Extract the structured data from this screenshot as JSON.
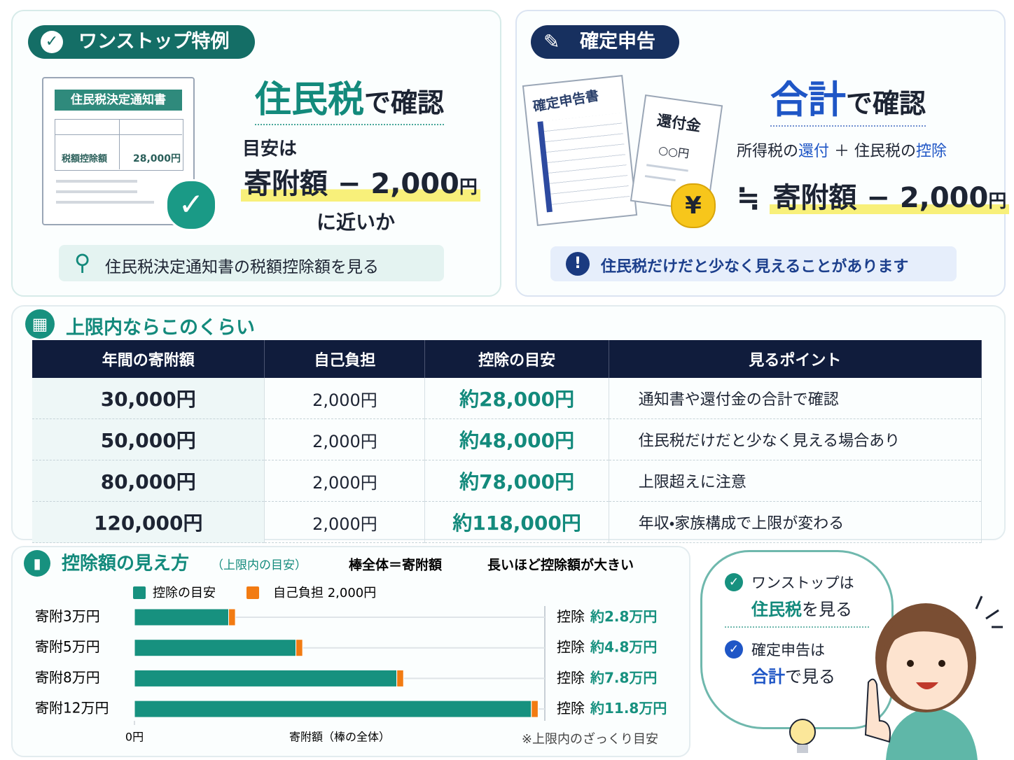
{
  "onestop": {
    "badge": "ワンストップ特例",
    "doc_title": "住民税決定通知書",
    "doc_row_label": "税額控除額",
    "doc_row_value": "28,000円",
    "heading_em": "住民税",
    "heading_rest": "で確認",
    "lead": "目安は",
    "formula": "寄附額 − 2,000",
    "formula_unit": "円",
    "tail": "に近いか",
    "hint": "住民税決定通知書の税額控除額を見る"
  },
  "kakutei": {
    "badge": "確定申告",
    "form_title": "確定申告書",
    "refund_title": "還付金",
    "refund_amount": "○○円",
    "yen": "¥",
    "heading_em": "合計",
    "heading_rest": "で確認",
    "sum_parts": [
      "所得税の",
      "還付",
      "＋ 住民税の",
      "控除"
    ],
    "approx": "≒",
    "formula": "寄附額 − 2,000",
    "formula_unit": "円",
    "warning": "住民税だけだと少なく見えることがあります"
  },
  "table": {
    "title": "上限内ならこのくらい",
    "headers": [
      "年間の寄附額",
      "自己負担",
      "控除の目安",
      "見るポイント"
    ],
    "rows": [
      [
        "30,000円",
        "2,000円",
        "約28,000円",
        "通知書や還付金の合計で確認"
      ],
      [
        "50,000円",
        "2,000円",
        "約48,000円",
        "住民税だけだと少なく見える場合あり"
      ],
      [
        "80,000円",
        "2,000円",
        "約78,000円",
        "上限超えに注意"
      ],
      [
        "120,000円",
        "2,000円",
        "約118,000円",
        "年収・家族構成で上限が変わる"
      ]
    ]
  },
  "chart_data": {
    "type": "bar",
    "orientation": "horizontal",
    "stacked": true,
    "title": "控除額の見え方",
    "subtitle": "（上限内の目安）",
    "notes": [
      "棒全体＝寄附額",
      "長いほど控除額が大きい"
    ],
    "categories": [
      "寄附3万円",
      "寄附5万円",
      "寄附8万円",
      "寄附12万円"
    ],
    "series": [
      {
        "name": "控除の目安",
        "color": "#17917f",
        "values": [
          2.8,
          4.8,
          7.8,
          11.8
        ],
        "value_labels": [
          "約2.8万円",
          "約4.8万円",
          "約7.8万円",
          "約11.8万円"
        ]
      },
      {
        "name": "自己負担 2,000円",
        "color": "#f27b12",
        "values": [
          0.2,
          0.2,
          0.2,
          0.2
        ]
      }
    ],
    "value_label_prefix": "控除",
    "xlabel": "寄附額（棒の全体）",
    "footnote": "※上限内のざっくり目安",
    "xlim": [
      0,
      12.2
    ],
    "xticks": [
      {
        "value": 0,
        "label": "0円"
      }
    ]
  },
  "speech": {
    "onestop_label": "ワンストップは",
    "onestop_em": "住民税",
    "onestop_rest": "を見る",
    "kakutei_label": "確定申告は",
    "kakutei_em": "合計",
    "kakutei_rest": "で見る"
  }
}
